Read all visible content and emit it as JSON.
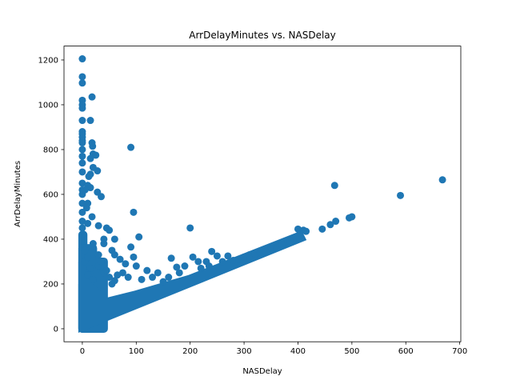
{
  "chart_data": {
    "type": "scatter",
    "title": "ArrDelayMinutes vs. NASDelay",
    "xlabel": "NASDelay",
    "ylabel": "ArrDelayMinutes",
    "xlim": [
      -34,
      702
    ],
    "ylim": [
      -58,
      1262
    ],
    "xticks": [
      0,
      100,
      200,
      300,
      400,
      500,
      600,
      700
    ],
    "yticks": [
      0,
      200,
      400,
      600,
      800,
      1000,
      1200
    ],
    "grid": false,
    "legend": "none",
    "marker_color": "#1f77b4",
    "points": [
      [
        0,
        1205
      ],
      [
        0,
        1125
      ],
      [
        0,
        1097
      ],
      [
        0,
        1020
      ],
      [
        0,
        1000
      ],
      [
        0,
        985
      ],
      [
        0,
        930
      ],
      [
        0,
        880
      ],
      [
        0,
        870
      ],
      [
        0,
        855
      ],
      [
        0,
        840
      ],
      [
        0,
        830
      ],
      [
        0,
        800
      ],
      [
        0,
        770
      ],
      [
        0,
        740
      ],
      [
        0,
        700
      ],
      [
        0,
        650
      ],
      [
        0,
        620
      ],
      [
        0,
        600
      ],
      [
        0,
        560
      ],
      [
        0,
        520
      ],
      [
        0,
        480
      ],
      [
        0,
        450
      ],
      [
        0,
        420
      ],
      [
        18,
        1035
      ],
      [
        15,
        930
      ],
      [
        18,
        830
      ],
      [
        19,
        815
      ],
      [
        20,
        780
      ],
      [
        25,
        775
      ],
      [
        15,
        760
      ],
      [
        20,
        720
      ],
      [
        28,
        705
      ],
      [
        15,
        690
      ],
      [
        12,
        680
      ],
      [
        10,
        640
      ],
      [
        15,
        630
      ],
      [
        5,
        620
      ],
      [
        28,
        610
      ],
      [
        35,
        590
      ],
      [
        10,
        560
      ],
      [
        8,
        540
      ],
      [
        18,
        500
      ],
      [
        10,
        470
      ],
      [
        90,
        810
      ],
      [
        95,
        520
      ],
      [
        105,
        410
      ],
      [
        200,
        450
      ],
      [
        468,
        640
      ],
      [
        590,
        595
      ],
      [
        668,
        665
      ],
      [
        30,
        460
      ],
      [
        45,
        450
      ],
      [
        50,
        440
      ],
      [
        60,
        400
      ],
      [
        40,
        400
      ],
      [
        20,
        380
      ],
      [
        40,
        380
      ],
      [
        55,
        350
      ],
      [
        60,
        330
      ],
      [
        30,
        330
      ],
      [
        5,
        300
      ],
      [
        90,
        365
      ],
      [
        95,
        320
      ],
      [
        70,
        310
      ],
      [
        80,
        290
      ],
      [
        100,
        280
      ],
      [
        120,
        260
      ],
      [
        140,
        250
      ],
      [
        165,
        315
      ],
      [
        175,
        275
      ],
      [
        190,
        280
      ],
      [
        205,
        320
      ],
      [
        215,
        300
      ],
      [
        240,
        345
      ],
      [
        250,
        325
      ],
      [
        270,
        325
      ],
      [
        230,
        300
      ],
      [
        400,
        445
      ],
      [
        410,
        440
      ],
      [
        415,
        435
      ],
      [
        445,
        445
      ],
      [
        460,
        465
      ],
      [
        470,
        480
      ],
      [
        495,
        495
      ],
      [
        500,
        500
      ],
      [
        350,
        355
      ],
      [
        360,
        360
      ],
      [
        380,
        380
      ],
      [
        390,
        395
      ],
      [
        10,
        240
      ],
      [
        20,
        220
      ],
      [
        25,
        260
      ],
      [
        30,
        280
      ],
      [
        35,
        300
      ],
      [
        5,
        350
      ],
      [
        10,
        320
      ],
      [
        15,
        270
      ],
      [
        40,
        250
      ],
      [
        45,
        260
      ],
      [
        50,
        230
      ],
      [
        55,
        200
      ],
      [
        60,
        215
      ],
      [
        65,
        240
      ],
      [
        75,
        250
      ],
      [
        85,
        230
      ],
      [
        110,
        220
      ],
      [
        130,
        230
      ],
      [
        150,
        210
      ],
      [
        160,
        230
      ],
      [
        180,
        250
      ],
      [
        220,
        270
      ],
      [
        235,
        280
      ],
      [
        260,
        300
      ],
      [
        280,
        305
      ],
      [
        290,
        310
      ],
      [
        300,
        320
      ],
      [
        310,
        330
      ],
      [
        320,
        335
      ],
      [
        330,
        340
      ],
      [
        340,
        345
      ],
      [
        370,
        375
      ],
      [
        385,
        390
      ]
    ],
    "bands": [
      {
        "x0": 0,
        "x1": 2,
        "y0": 0,
        "y1": 420
      },
      {
        "x0": 0,
        "x1": 20,
        "y0": 0,
        "y1": 360
      },
      {
        "x0": 0,
        "x1": 40,
        "y0": 0,
        "y1": 300
      }
    ],
    "diagonal_band": {
      "x_start": 0,
      "x_end": 410,
      "thickness": 55
    }
  }
}
